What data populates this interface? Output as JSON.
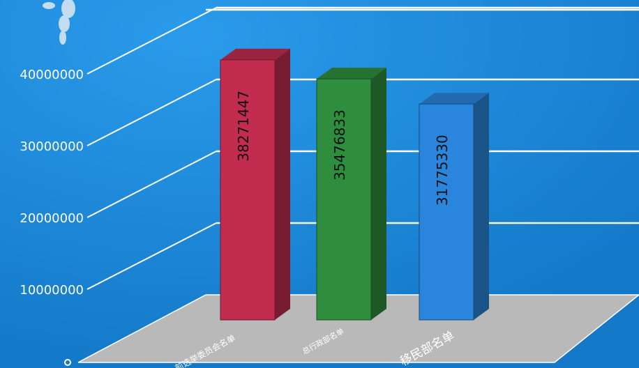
{
  "chart_data": {
    "type": "bar",
    "categories": [
      "前选举委员会名单",
      "总行政部名单",
      "移民部名单"
    ],
    "values": [
      38271447,
      35476833,
      31775330
    ],
    "ylim": [
      0,
      50000000
    ],
    "yticks": [
      {
        "value": 0,
        "label": "0"
      },
      {
        "value": 10000000,
        "label": "10000000"
      },
      {
        "value": 20000000,
        "label": "20000000"
      },
      {
        "value": 30000000,
        "label": "30000000"
      },
      {
        "value": 40000000,
        "label": "40000000"
      }
    ],
    "bar_colors": [
      "#c22d4f",
      "#2e8e3e",
      "#2a86dc"
    ],
    "grid": true,
    "style": "3d"
  },
  "colors": {
    "background": "#1f8fe0",
    "floor": "#b9b9b9",
    "grid": "#ffffff",
    "text": "#ffffff",
    "bar_label": "#111111"
  }
}
